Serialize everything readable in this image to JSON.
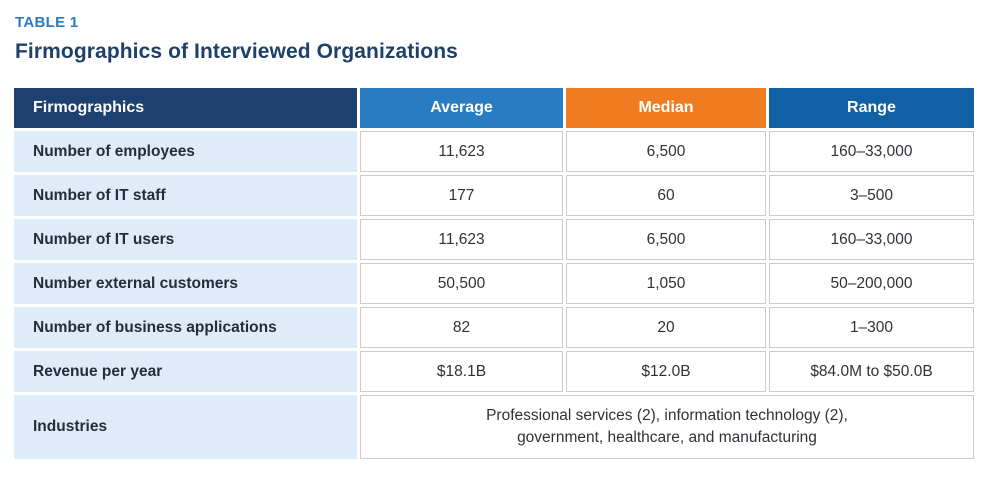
{
  "page": {
    "eyebrow": "TABLE 1",
    "title": "Firmographics of Interviewed Organizations"
  },
  "colors": {
    "eyebrow_text": "#2B7BC1",
    "title_text": "#1F4068",
    "header_firmographics_bg": "#1E4070",
    "header_average_bg": "#2A7CC2",
    "header_median_bg": "#F07C21",
    "header_range_bg": "#1160A5",
    "header_text": "#FFFFFF",
    "label_column_bg": "#DEEBF8",
    "label_text": "#232E3A",
    "data_cell_border": "#C9CDD1",
    "data_text": "#2F3237"
  },
  "chart_data": {
    "type": "table",
    "caption": "TABLE 1",
    "title": "Firmographics of Interviewed Organizations",
    "columns": [
      "Firmographics",
      "Average",
      "Median",
      "Range"
    ],
    "rows": [
      {
        "label": "Number of employees",
        "average": "11,623",
        "median": "6,500",
        "range": "160–33,000"
      },
      {
        "label": "Number of IT staff",
        "average": "177",
        "median": "60",
        "range": "3–500"
      },
      {
        "label": "Number of IT users",
        "average": "11,623",
        "median": "6,500",
        "range": "160–33,000"
      },
      {
        "label": "Number external customers",
        "average": "50,500",
        "median": "1,050",
        "range": "50–200,000"
      },
      {
        "label": "Number of business applications",
        "average": "82",
        "median": "20",
        "range": "1–300"
      },
      {
        "label": "Revenue per year",
        "average": "$18.1B",
        "median": "$12.0B",
        "range": "$84.0M to $50.0B"
      }
    ],
    "spanning_row": {
      "label": "Industries",
      "value": "Professional services (2), information technology (2), government, healthcare, and manufacturing"
    }
  }
}
